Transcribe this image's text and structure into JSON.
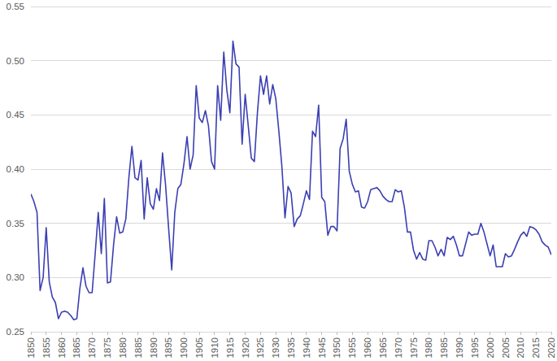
{
  "chart_data": {
    "type": "line",
    "color": "#3b3fb2",
    "grid": true,
    "x": [
      1850,
      1851,
      1852,
      1853,
      1854,
      1855,
      1856,
      1857,
      1858,
      1859,
      1860,
      1861,
      1862,
      1863,
      1864,
      1865,
      1866,
      1867,
      1868,
      1869,
      1870,
      1871,
      1872,
      1873,
      1874,
      1875,
      1876,
      1877,
      1878,
      1879,
      1880,
      1881,
      1882,
      1883,
      1884,
      1885,
      1886,
      1887,
      1888,
      1889,
      1890,
      1891,
      1892,
      1893,
      1894,
      1895,
      1896,
      1897,
      1898,
      1899,
      1900,
      1901,
      1902,
      1903,
      1904,
      1905,
      1906,
      1907,
      1908,
      1909,
      1910,
      1911,
      1912,
      1913,
      1914,
      1915,
      1916,
      1917,
      1918,
      1919,
      1920,
      1921,
      1922,
      1923,
      1924,
      1925,
      1926,
      1927,
      1928,
      1929,
      1930,
      1931,
      1932,
      1933,
      1934,
      1935,
      1936,
      1937,
      1938,
      1939,
      1940,
      1941,
      1942,
      1943,
      1944,
      1945,
      1946,
      1947,
      1948,
      1949,
      1950,
      1951,
      1952,
      1953,
      1954,
      1955,
      1956,
      1957,
      1958,
      1959,
      1960,
      1961,
      1962,
      1963,
      1964,
      1965,
      1966,
      1967,
      1968,
      1969,
      1970,
      1971,
      1972,
      1973,
      1974,
      1975,
      1976,
      1977,
      1978,
      1979,
      1980,
      1981,
      1982,
      1983,
      1984,
      1985,
      1986,
      1987,
      1988,
      1989,
      1990,
      1991,
      1992,
      1993,
      1994,
      1995,
      1996,
      1997,
      1998,
      1999,
      2000,
      2001,
      2002,
      2003,
      2004,
      2005,
      2006,
      2007,
      2008,
      2009,
      2010,
      2011,
      2012,
      2013,
      2014,
      2015,
      2016,
      2017,
      2018,
      2019,
      2020
    ],
    "values": [
      0.377,
      0.37,
      0.36,
      0.288,
      0.3,
      0.346,
      0.296,
      0.282,
      0.277,
      0.262,
      0.268,
      0.269,
      0.268,
      0.265,
      0.261,
      0.262,
      0.29,
      0.309,
      0.292,
      0.286,
      0.286,
      0.322,
      0.36,
      0.322,
      0.373,
      0.295,
      0.296,
      0.33,
      0.356,
      0.341,
      0.342,
      0.354,
      0.392,
      0.421,
      0.392,
      0.39,
      0.408,
      0.354,
      0.392,
      0.368,
      0.363,
      0.382,
      0.371,
      0.415,
      0.385,
      0.345,
      0.307,
      0.36,
      0.382,
      0.386,
      0.405,
      0.43,
      0.4,
      0.413,
      0.477,
      0.447,
      0.443,
      0.454,
      0.44,
      0.407,
      0.4,
      0.477,
      0.445,
      0.508,
      0.473,
      0.452,
      0.518,
      0.497,
      0.494,
      0.423,
      0.469,
      0.44,
      0.41,
      0.407,
      0.452,
      0.486,
      0.469,
      0.486,
      0.46,
      0.478,
      0.465,
      0.435,
      0.402,
      0.355,
      0.384,
      0.378,
      0.347,
      0.354,
      0.357,
      0.368,
      0.38,
      0.372,
      0.435,
      0.43,
      0.459,
      0.374,
      0.37,
      0.339,
      0.347,
      0.347,
      0.343,
      0.419,
      0.428,
      0.446,
      0.398,
      0.386,
      0.379,
      0.38,
      0.365,
      0.364,
      0.37,
      0.381,
      0.382,
      0.383,
      0.38,
      0.375,
      0.372,
      0.37,
      0.37,
      0.381,
      0.379,
      0.38,
      0.365,
      0.342,
      0.342,
      0.325,
      0.317,
      0.323,
      0.317,
      0.316,
      0.334,
      0.334,
      0.328,
      0.32,
      0.326,
      0.32,
      0.337,
      0.335,
      0.338,
      0.33,
      0.32,
      0.32,
      0.331,
      0.342,
      0.339,
      0.34,
      0.34,
      0.35,
      0.342,
      0.331,
      0.32,
      0.33,
      0.31,
      0.31,
      0.31,
      0.322,
      0.319,
      0.32,
      0.326,
      0.333,
      0.339,
      0.342,
      0.338,
      0.347,
      0.346,
      0.344,
      0.34,
      0.333,
      0.33,
      0.328,
      0.321
    ],
    "xlim": [
      1850,
      2020
    ],
    "xticks": [
      1850,
      1855,
      1860,
      1865,
      1870,
      1875,
      1880,
      1885,
      1890,
      1895,
      1900,
      1905,
      1910,
      1915,
      1920,
      1925,
      1930,
      1935,
      1940,
      1945,
      1950,
      1955,
      1960,
      1965,
      1970,
      1975,
      1980,
      1985,
      1990,
      1995,
      2000,
      2005,
      2010,
      2015,
      2020
    ],
    "ylim": [
      0.25,
      0.55
    ],
    "yticks": [
      0.25,
      {
        "value": 0.3,
        "label": "0.30"
      },
      0.35,
      {
        "value": 0.4,
        "label": "0.40"
      },
      0.45,
      {
        "value": 0.5,
        "label": "0.50"
      },
      0.55
    ]
  }
}
